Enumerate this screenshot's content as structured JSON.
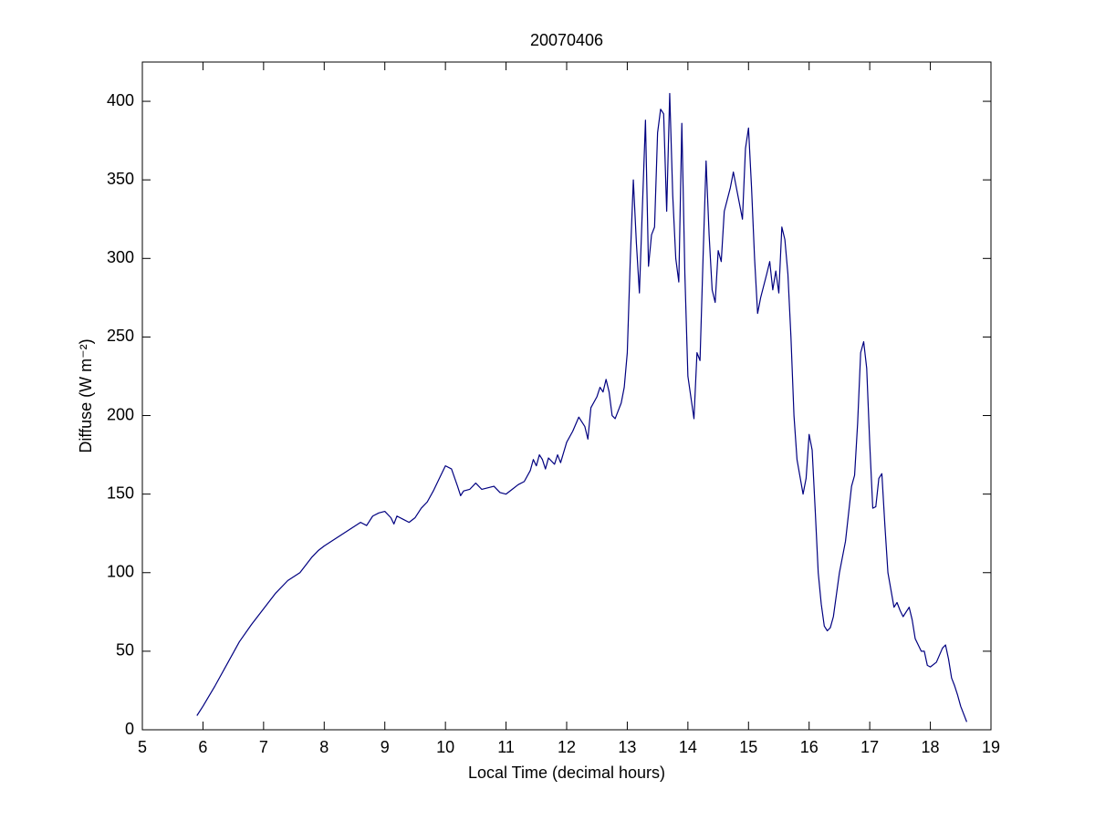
{
  "chart_data": {
    "type": "line",
    "title": "20070406",
    "xlabel": "Local Time (decimal hours)",
    "ylabel": "Diffuse (W m⁻²)",
    "xlim": [
      5,
      19
    ],
    "xticks": [
      5,
      6,
      7,
      8,
      9,
      10,
      11,
      12,
      13,
      14,
      15,
      16,
      17,
      18,
      19
    ],
    "ylim": [
      0,
      425
    ],
    "yticks": [
      0,
      50,
      100,
      150,
      200,
      250,
      300,
      350,
      400
    ],
    "grid": false,
    "color": "#000080",
    "x": [
      5.9,
      6.0,
      6.2,
      6.4,
      6.6,
      6.8,
      7.0,
      7.2,
      7.4,
      7.6,
      7.7,
      7.8,
      7.9,
      8.0,
      8.2,
      8.4,
      8.6,
      8.7,
      8.8,
      8.9,
      9.0,
      9.1,
      9.15,
      9.2,
      9.3,
      9.4,
      9.5,
      9.6,
      9.7,
      9.8,
      9.9,
      10.0,
      10.1,
      10.2,
      10.25,
      10.3,
      10.4,
      10.5,
      10.6,
      10.8,
      10.9,
      11.0,
      11.1,
      11.2,
      11.3,
      11.4,
      11.45,
      11.5,
      11.55,
      11.6,
      11.65,
      11.7,
      11.8,
      11.85,
      11.9,
      12.0,
      12.1,
      12.2,
      12.25,
      12.3,
      12.35,
      12.4,
      12.5,
      12.55,
      12.6,
      12.65,
      12.7,
      12.75,
      12.8,
      12.9,
      12.95,
      13.0,
      13.05,
      13.1,
      13.15,
      13.2,
      13.3,
      13.35,
      13.4,
      13.45,
      13.5,
      13.55,
      13.6,
      13.65,
      13.7,
      13.75,
      13.8,
      13.85,
      13.9,
      13.95,
      14.0,
      14.1,
      14.15,
      14.2,
      14.25,
      14.3,
      14.35,
      14.4,
      14.45,
      14.5,
      14.55,
      14.6,
      14.7,
      14.75,
      14.85,
      14.9,
      14.95,
      15.0,
      15.05,
      15.1,
      15.15,
      15.2,
      15.3,
      15.35,
      15.4,
      15.45,
      15.5,
      15.55,
      15.6,
      15.65,
      15.7,
      15.75,
      15.8,
      15.9,
      15.95,
      16.0,
      16.05,
      16.1,
      16.15,
      16.2,
      16.25,
      16.3,
      16.35,
      16.4,
      16.5,
      16.6,
      16.7,
      16.75,
      16.8,
      16.85,
      16.9,
      16.95,
      17.0,
      17.05,
      17.1,
      17.15,
      17.2,
      17.25,
      17.3,
      17.4,
      17.45,
      17.5,
      17.55,
      17.65,
      17.7,
      17.75,
      17.85,
      17.9,
      17.95,
      18.0,
      18.1,
      18.2,
      18.25,
      18.3,
      18.35,
      18.4,
      18.45,
      18.5,
      18.6
    ],
    "values": [
      9,
      15,
      28,
      42,
      56,
      67,
      77,
      87,
      95,
      100,
      105,
      110,
      114,
      117,
      122,
      127,
      132,
      130,
      136,
      138,
      139,
      135,
      131,
      136,
      134,
      132,
      135,
      141,
      145,
      152,
      160,
      168,
      166,
      155,
      149,
      152,
      153,
      157,
      153,
      155,
      151,
      150,
      153,
      156,
      158,
      165,
      172,
      168,
      175,
      172,
      166,
      173,
      169,
      175,
      170,
      183,
      190,
      199,
      196,
      193,
      185,
      205,
      212,
      218,
      215,
      223,
      215,
      200,
      198,
      208,
      218,
      240,
      300,
      350,
      310,
      278,
      388,
      295,
      315,
      320,
      380,
      395,
      392,
      330,
      405,
      340,
      300,
      285,
      386,
      290,
      225,
      198,
      240,
      235,
      300,
      362,
      315,
      280,
      272,
      305,
      298,
      330,
      345,
      355,
      335,
      325,
      370,
      383,
      345,
      300,
      265,
      275,
      290,
      298,
      280,
      292,
      278,
      320,
      312,
      290,
      250,
      200,
      172,
      150,
      160,
      188,
      178,
      140,
      100,
      80,
      66,
      63,
      65,
      72,
      100,
      120,
      155,
      162,
      195,
      240,
      247,
      230,
      182,
      141,
      142,
      160,
      163,
      130,
      100,
      78,
      81,
      76,
      72,
      78,
      70,
      58,
      50,
      50,
      41,
      40,
      43,
      52,
      54,
      45,
      33,
      28,
      22,
      15,
      5
    ]
  }
}
